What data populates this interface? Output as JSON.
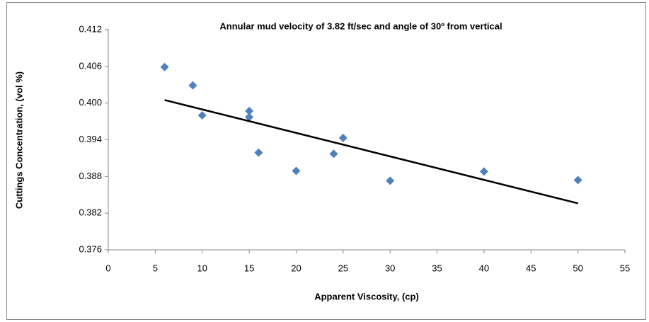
{
  "chart_data": {
    "type": "scatter",
    "title": "Annular mud velocity of 3.82 ft/sec and angle of 30º from vertical",
    "x_label": "Apparent Viscosity,  (cp)",
    "y_label": "Cuttings Concentration, (vol %)",
    "x": [
      6,
      9,
      10,
      15,
      15,
      16,
      20,
      24,
      25,
      30,
      40,
      50
    ],
    "values": [
      0.4059,
      0.4029,
      0.398,
      0.3987,
      0.3977,
      0.3919,
      0.3889,
      0.3917,
      0.3943,
      0.3873,
      0.3888,
      0.3874
    ],
    "color": "#4f81bd",
    "trendline": {
      "x": [
        6,
        50
      ],
      "values": [
        0.4005,
        0.3836
      ],
      "color": "#000000"
    },
    "xlim": [
      0,
      55
    ],
    "xticks": [
      0,
      5,
      10,
      15,
      20,
      25,
      30,
      35,
      40,
      45,
      50,
      55
    ],
    "ylim": [
      0.376,
      0.412
    ],
    "yticks": [
      0.376,
      0.382,
      0.388,
      0.394,
      {
        "value": 0.4,
        "label": "0.400"
      },
      0.406,
      0.412
    ],
    "grid": false
  }
}
